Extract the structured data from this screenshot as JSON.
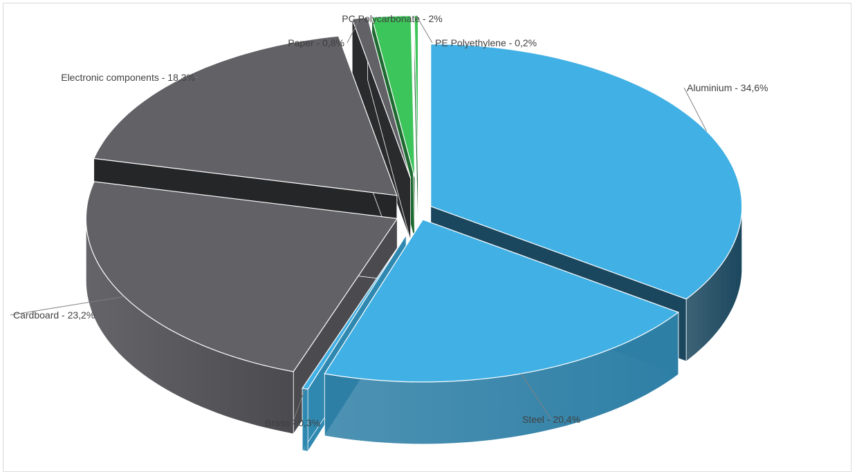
{
  "chart_data": {
    "type": "pie",
    "title": "",
    "exploded": true,
    "three_d": true,
    "slices": [
      {
        "category": "Aluminium",
        "value": 34.6,
        "label": "Aluminium - 34,6%",
        "color": "#41B0E4",
        "side_color": "#1B475E"
      },
      {
        "category": "Steel",
        "value": 20.4,
        "label": "Steel - 20,4%",
        "color": "#41B0E4",
        "side_color": "#2E7FA6"
      },
      {
        "category": "Brass",
        "value": 0.3,
        "label": "Brass - 0,3%",
        "color": "#41B0E4",
        "side_color": "#2F88B0"
      },
      {
        "category": "Cardboard",
        "value": 23.2,
        "label": "Cardboard - 23,2%",
        "color": "#616166",
        "side_color": "#4A4A4F"
      },
      {
        "category": "Electronic components",
        "value": 18.3,
        "label": "Electronic components - 18,3%",
        "color": "#616166",
        "side_color": "#252628"
      },
      {
        "category": "Paper",
        "value": 0.8,
        "label": "Paper - 0,8%",
        "color": "#616166",
        "side_color": "#2A2B2D"
      },
      {
        "category": "PC Polycarbonate",
        "value": 2,
        "label": "PC Polycarbonate - 2%",
        "color": "#3CC55A",
        "side_color": "#1E6A31"
      },
      {
        "category": "PE Polyethylene",
        "value": 0.2,
        "label": "PE Polyethylene - 0,2%",
        "color": "#3CC55A",
        "side_color": "#1E6A31"
      }
    ]
  }
}
